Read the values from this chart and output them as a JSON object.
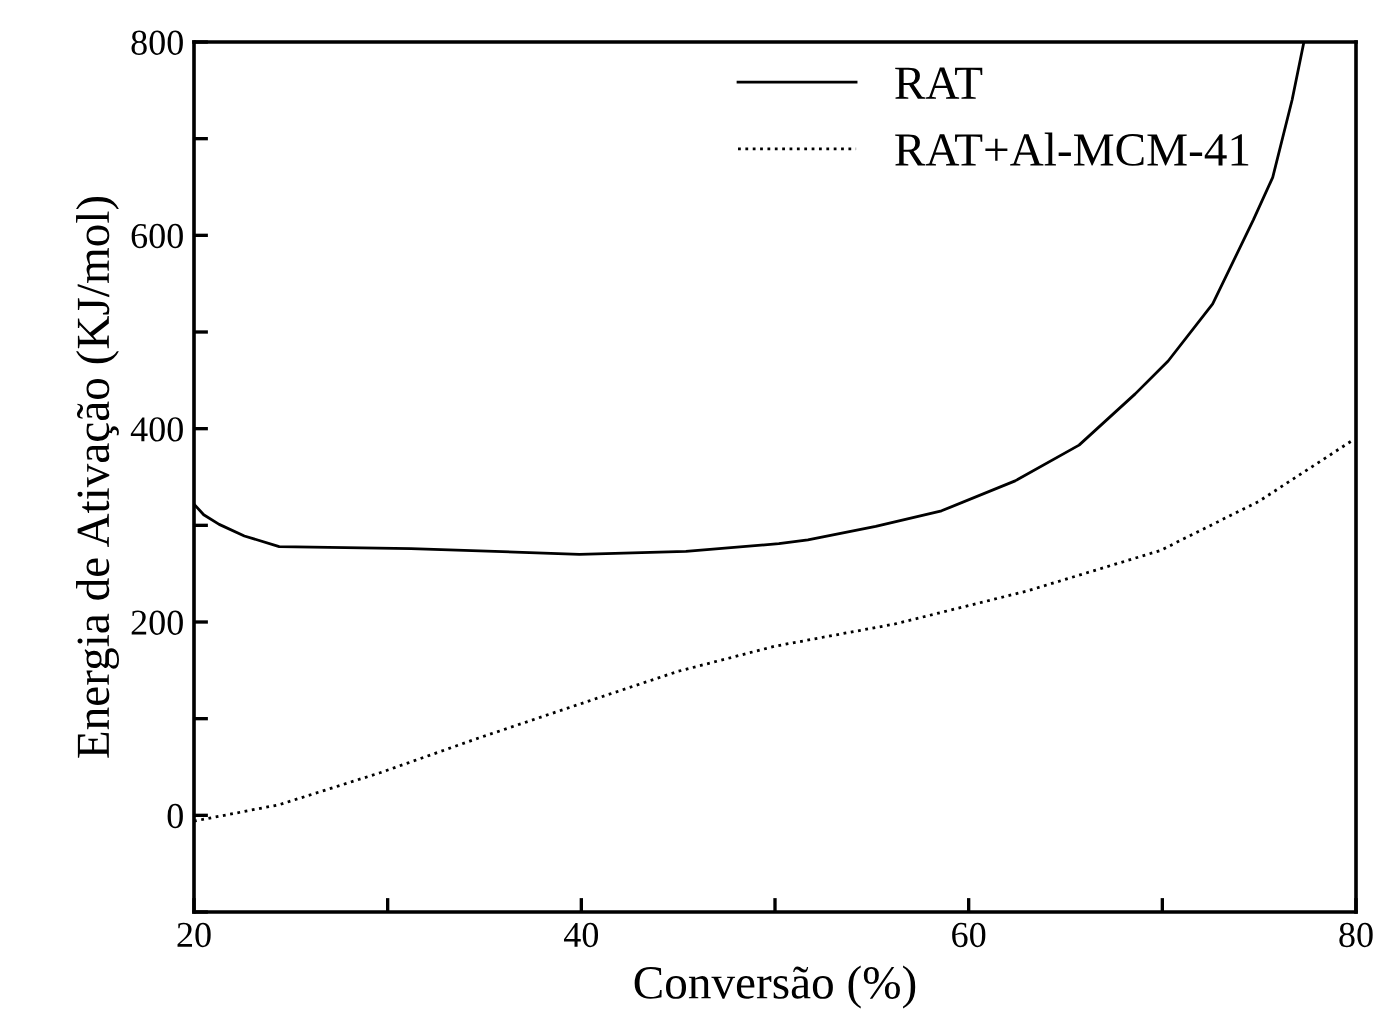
{
  "chart_data": {
    "type": "line",
    "xlabel": "Conversão (%)",
    "ylabel": "Energia de Ativação (KJ/mol)",
    "xlim": [
      20,
      80
    ],
    "ylim": [
      -100,
      800
    ],
    "xticks": [
      20,
      {
        "value": 30,
        "label": null
      },
      40,
      {
        "value": 50,
        "label": null
      },
      60,
      {
        "value": 70,
        "label": null
      },
      80
    ],
    "yticks": [
      {
        "value": -100,
        "label": null
      },
      0,
      {
        "value": 100,
        "label": null
      },
      200,
      {
        "value": 300,
        "label": null
      },
      400,
      {
        "value": 500,
        "label": null
      },
      600,
      {
        "value": 700,
        "label": null
      },
      800
    ],
    "grid": false,
    "legend": "top right",
    "marker": "none",
    "series": [
      {
        "name": "RAT",
        "color": "#000000",
        "line_style": "solid",
        "x": [
          20,
          20.5,
          21.3,
          22.6,
          24.4,
          31.2,
          39.9,
          45.4,
          50.2,
          51.7,
          55.2,
          58.6,
          62.4,
          65.7,
          68.6,
          70.3,
          72.6,
          74.7,
          75.7,
          76.7,
          77.3
        ],
        "values": [
          322,
          311,
          301,
          289,
          278,
          276,
          270,
          273,
          281,
          285,
          299,
          315,
          346,
          383,
          436,
          470,
          529,
          616,
          660,
          740,
          799
        ]
      },
      {
        "name": "RAT+Al-MCM-41",
        "color": "#000000",
        "line_style": "dotted",
        "x": [
          20,
          24.4,
          29.6,
          34.7,
          39.9,
          45.0,
          50.0,
          56.2,
          63.0,
          69.9,
          75.0,
          79.9
        ],
        "values": [
          -6,
          11,
          44,
          80,
          115,
          149,
          175,
          198,
          232,
          274,
          325,
          389
        ]
      }
    ]
  }
}
